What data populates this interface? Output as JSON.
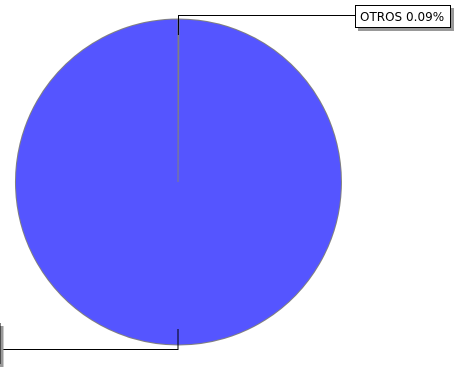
{
  "chart_data": {
    "type": "pie",
    "title": "",
    "slices": [
      {
        "label": "OTROS 0.09%",
        "value": 0.09,
        "color": "#5555ff"
      },
      {
        "label": "",
        "value": 99.91,
        "color": "#5555ff"
      }
    ],
    "legend": "none",
    "border_color": "#808080",
    "leader_color": "#000000"
  }
}
